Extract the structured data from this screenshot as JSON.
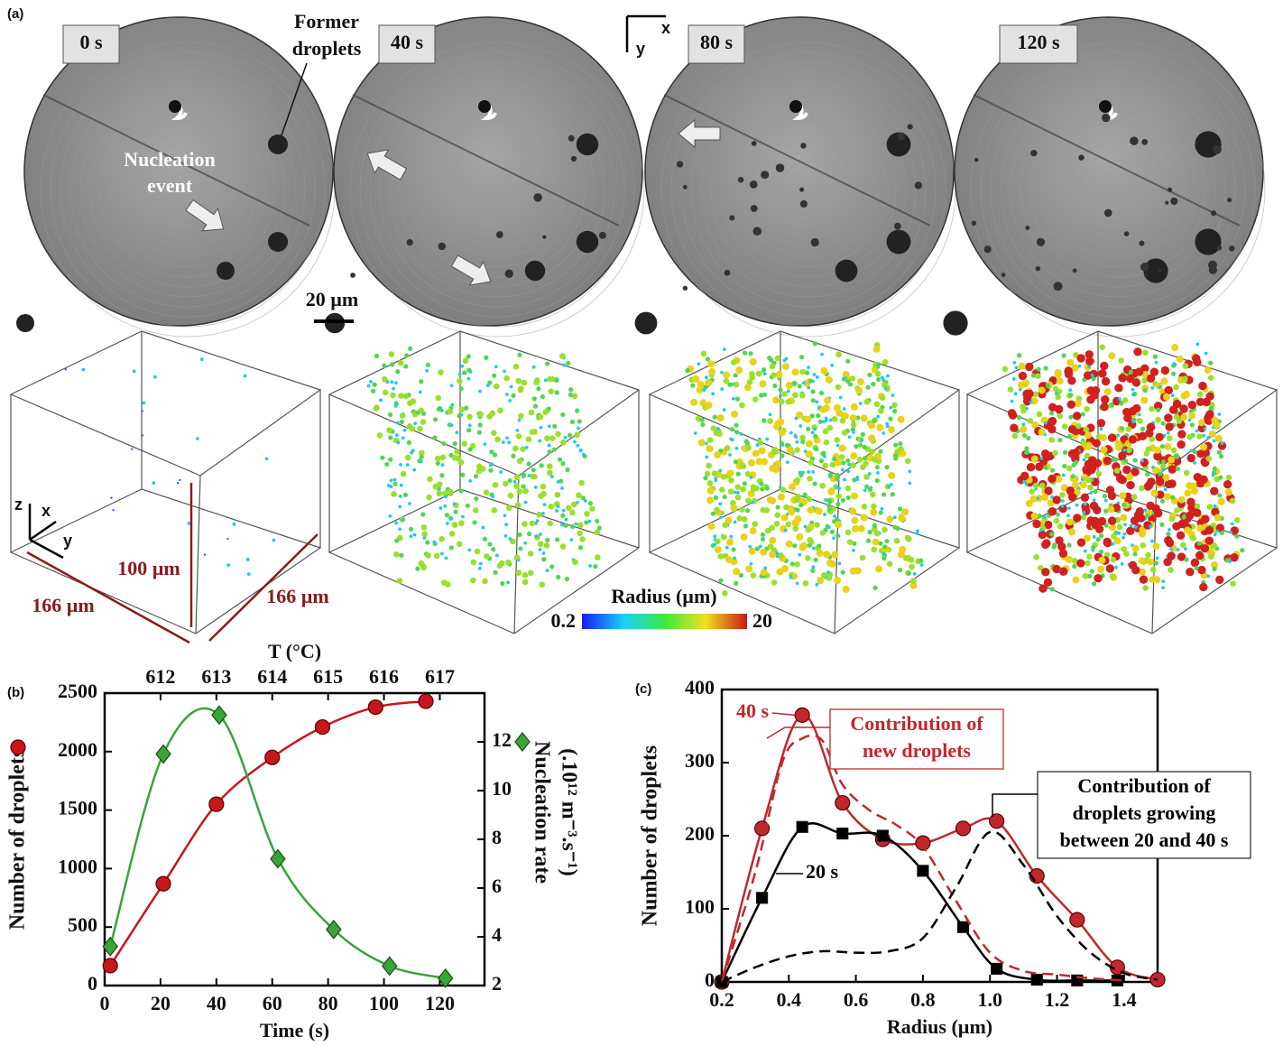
{
  "panel_a": {
    "label": "(a)",
    "times": [
      "0 s",
      "40 s",
      "80 s",
      "120 s"
    ],
    "annotations": {
      "former": [
        "Former",
        "droplets"
      ],
      "nucleation": [
        "Nucleation",
        "event"
      ]
    },
    "scale_bar": "20 µm",
    "axes_2d": [
      "x",
      "y"
    ],
    "axes_3d": [
      "z",
      "x",
      "y"
    ],
    "dimensions": [
      "100 µm",
      "166 µm",
      "166 µm"
    ],
    "colorbar": {
      "title": "Radius (µm)",
      "ticks": [
        0.2,
        20
      ]
    }
  },
  "chart_data": [
    {
      "type": "line",
      "panel_label": "(b)",
      "xlabel": "Time (s)",
      "x2label": "T (°C)",
      "ylabel": "Number of droplets",
      "y2label": [
        "Nucleation rate",
        "(.10¹² m⁻³.s⁻¹)"
      ],
      "xlim": [
        0,
        136
      ],
      "xticks": [
        0,
        20,
        40,
        60,
        80,
        100,
        120
      ],
      "x2lim": [
        611,
        617.8
      ],
      "x2ticks": [
        612,
        613,
        614,
        615,
        616,
        617
      ],
      "ylim": [
        0,
        2500
      ],
      "yticks": [
        0,
        500,
        1000,
        1500,
        2000,
        2500
      ],
      "y2lim": [
        2,
        14
      ],
      "y2ticks": [
        2,
        4,
        6,
        8,
        10,
        12
      ],
      "series": [
        {
          "color": "#c8161d",
          "marker": "circle",
          "x": [
            2,
            21,
            40,
            60,
            78,
            97,
            115
          ],
          "values": [
            170,
            870,
            1550,
            1950,
            2210,
            2380,
            2430
          ]
        },
        {
          "color": "#3aa43a",
          "marker": "diamond",
          "axis": "y2",
          "x": [
            2,
            21,
            41,
            62,
            82,
            102,
            122
          ],
          "values": [
            3.6,
            11.5,
            13.1,
            7.2,
            4.3,
            2.8,
            2.3
          ]
        }
      ]
    },
    {
      "type": "line",
      "panel_label": "(c)",
      "xlabel": "Radius (µm)",
      "ylabel": "Number of droplets",
      "xlim": [
        0.2,
        1.5
      ],
      "xticks": [
        0.2,
        0.4,
        0.6,
        0.8,
        {
          "value": 1,
          "label": "1.0"
        },
        1.2,
        1.4
      ],
      "ylim": [
        0,
        400
      ],
      "yticks": [
        0,
        100,
        200,
        300,
        400
      ],
      "series": [
        {
          "name": "40 s",
          "color": "#c0282d",
          "marker": "circle",
          "x": [
            0.2,
            0.32,
            0.44,
            0.56,
            0.68,
            0.8,
            0.92,
            1.02,
            1.14,
            1.26,
            1.38,
            1.5
          ],
          "values": [
            0,
            210,
            365,
            245,
            195,
            190,
            210,
            220,
            145,
            85,
            20,
            3
          ]
        },
        {
          "name": "20 s",
          "color": "#000000",
          "marker": "square",
          "x": [
            0.2,
            0.32,
            0.44,
            0.56,
            0.68,
            0.8,
            0.92,
            1.02,
            1.14,
            1.26,
            1.38
          ],
          "values": [
            0,
            115,
            212,
            203,
            200,
            152,
            75,
            18,
            3,
            2,
            2
          ]
        },
        {
          "color": "#c0282d",
          "dash": true,
          "x": [
            0.2,
            0.3,
            0.38,
            0.44,
            0.5,
            0.56,
            0.64,
            0.72,
            0.8,
            0.9,
            1.0,
            1.1,
            1.2,
            1.3,
            1.4
          ],
          "values": [
            0,
            150,
            300,
            333,
            330,
            270,
            235,
            215,
            185,
            110,
            40,
            15,
            10,
            5,
            2
          ]
        },
        {
          "color": "#000000",
          "dash": true,
          "x": [
            0.2,
            0.3,
            0.4,
            0.5,
            0.6,
            0.7,
            0.8,
            0.9,
            1.0,
            1.1,
            1.2,
            1.3,
            1.4,
            1.5
          ],
          "values": [
            0,
            20,
            35,
            42,
            40,
            42,
            60,
            130,
            205,
            160,
            90,
            40,
            12,
            3
          ]
        }
      ],
      "annotations": [
        {
          "lines": [
            "Contribution of",
            "new droplets"
          ],
          "color": "#c0282d"
        },
        {
          "lines": [
            "Contribution of",
            "droplets growing",
            "between 20 and 40 s"
          ],
          "color": "#000000"
        }
      ]
    }
  ]
}
